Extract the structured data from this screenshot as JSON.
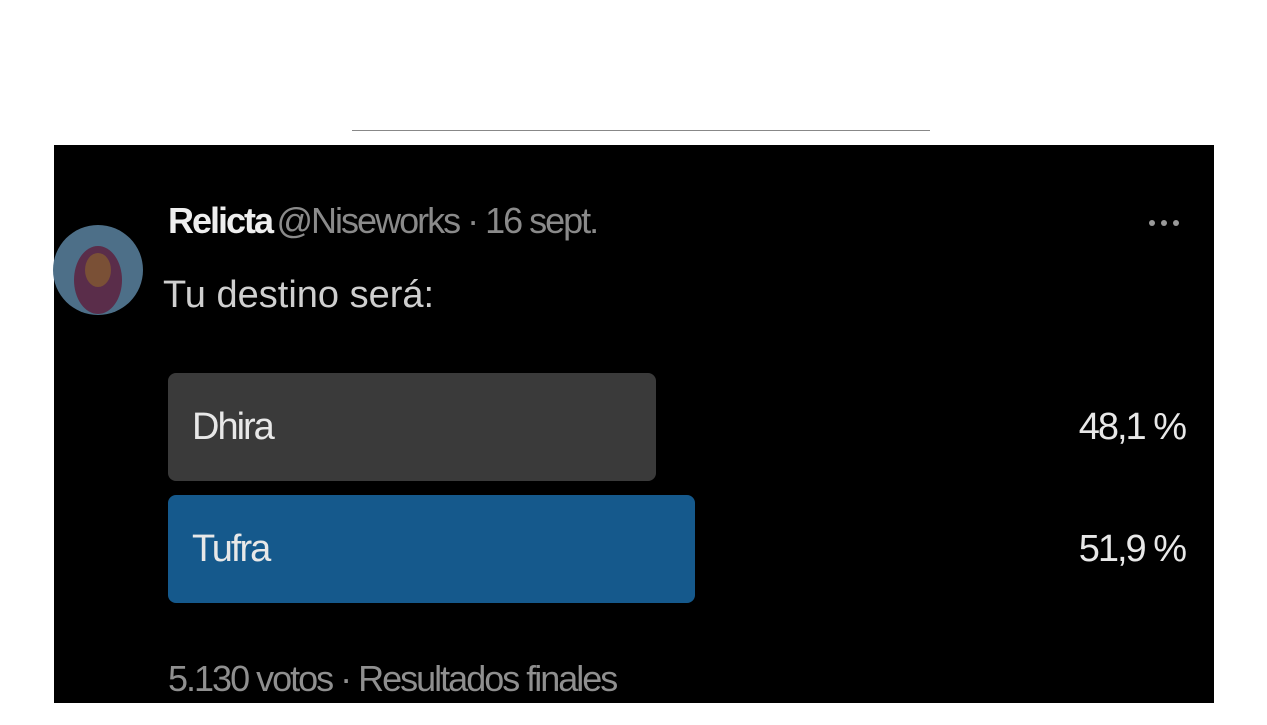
{
  "tweet": {
    "author": {
      "name": "Relicta",
      "meta": "@Niseworks · 16 sept."
    },
    "text": "Tu destino será:",
    "poll": {
      "options": [
        {
          "label": "Dhira",
          "value": 48.1,
          "value_label": "48,1 %",
          "color": "#3a3a3a"
        },
        {
          "label": "Tufra",
          "value": 51.9,
          "value_label": "51,9 %",
          "color": "#15598c"
        }
      ]
    },
    "footer": "5.130 votos · Resultados finales"
  }
}
